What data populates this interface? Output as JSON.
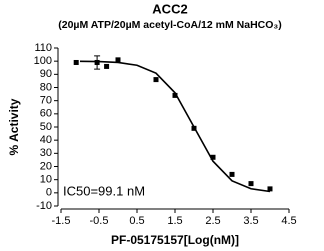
{
  "chart_data": {
    "type": "scatter",
    "title": "ACC2",
    "subtitle": "(20µM ATP/20µM acetyl-CoA/12 mM NaHCO₃)",
    "x_label": "PF-05175157[Log(nM)]",
    "y_label": "% Activity",
    "annotation": "IC50=99.1 nM",
    "xlim": [
      -1.5,
      4.5
    ],
    "xticks": [
      -1.5,
      -0.5,
      0.5,
      1.5,
      2.5,
      3.5,
      4.5
    ],
    "ylim": [
      -10,
      110
    ],
    "yticks": [
      -10,
      0,
      10,
      20,
      30,
      40,
      50,
      60,
      70,
      80,
      90,
      100,
      110
    ],
    "series": [
      {
        "type": "scatter",
        "color": "#000000",
        "x": [
          -1.1,
          -0.55,
          -0.3,
          0.0,
          1.0,
          1.5,
          2.0,
          2.5,
          3.0,
          3.5,
          4.0
        ],
        "values": [
          99,
          99,
          96,
          101,
          86,
          74,
          49,
          27,
          14,
          7,
          3
        ],
        "errors": [
          null,
          5,
          null,
          null,
          null,
          null,
          null,
          null,
          null,
          null,
          null
        ]
      },
      {
        "type": "line",
        "color": "#000000",
        "x": [
          -1.0,
          -0.5,
          0.0,
          0.5,
          1.0,
          1.5,
          2.0,
          2.5,
          3.0,
          3.5,
          4.0
        ],
        "values": [
          99.9,
          99.7,
          99.0,
          96.9,
          90.9,
          76.0,
          50.0,
          24.0,
          9.1,
          3.1,
          1.0
        ]
      }
    ]
  }
}
